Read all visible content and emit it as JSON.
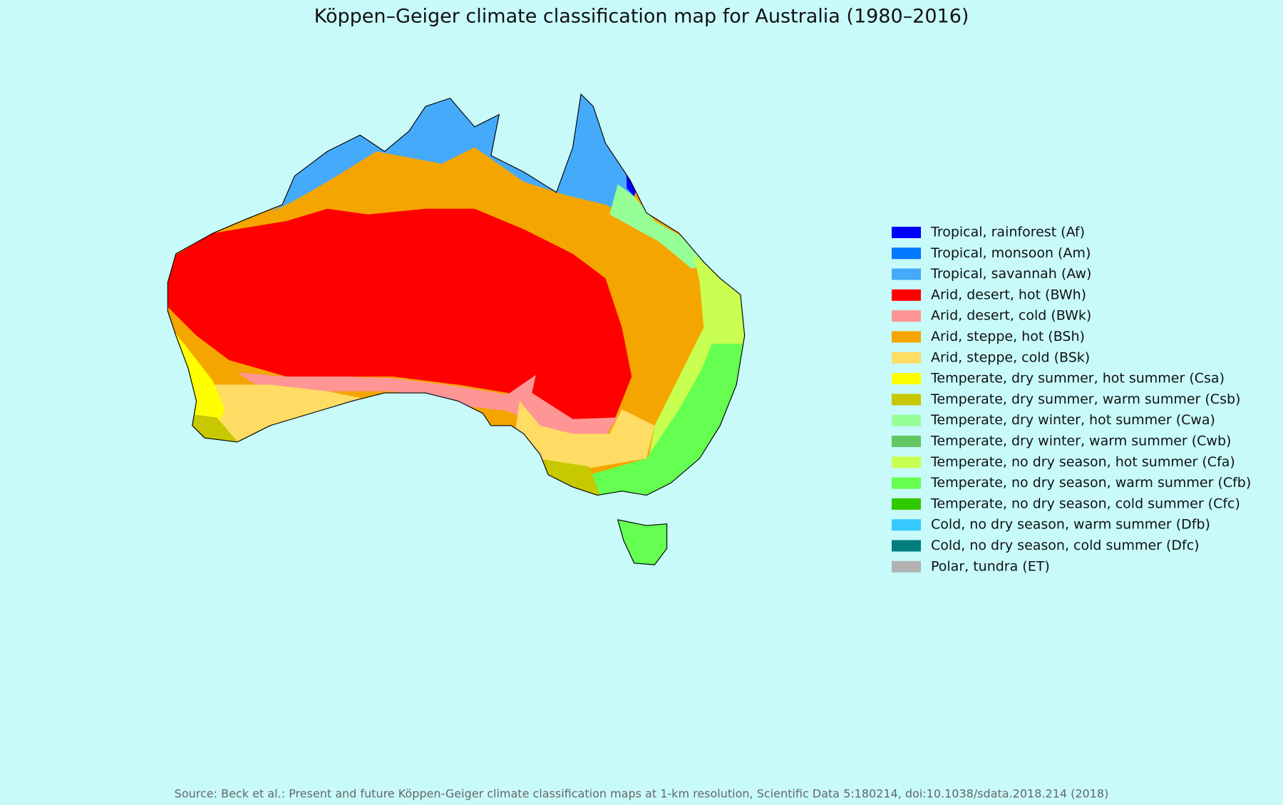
{
  "title": "Köppen–Geiger climate classification map for Australia (1980–2016)",
  "legend": {
    "items": [
      {
        "label": "Tropical, rainforest (Af)",
        "color": "#0000ff"
      },
      {
        "label": "Tropical, monsoon (Am)",
        "color": "#0078ff"
      },
      {
        "label": "Tropical, savannah (Aw)",
        "color": "#46aafa"
      },
      {
        "label": "Arid, desert, hot (BWh)",
        "color": "#ff0000"
      },
      {
        "label": "Arid, desert, cold (BWk)",
        "color": "#ff9696"
      },
      {
        "label": "Arid, steppe, hot (BSh)",
        "color": "#f5a500"
      },
      {
        "label": "Arid, steppe, cold (BSk)",
        "color": "#ffdc64"
      },
      {
        "label": "Temperate, dry summer, hot summer (Csa)",
        "color": "#ffff00"
      },
      {
        "label": "Temperate, dry summer, warm summer (Csb)",
        "color": "#c8c800"
      },
      {
        "label": "Temperate, dry winter, hot summer (Cwa)",
        "color": "#96ff96"
      },
      {
        "label": "Temperate, dry winter, warm summer (Cwb)",
        "color": "#63c764"
      },
      {
        "label": "Temperate, no dry season, hot summer (Cfa)",
        "color": "#c8ff50"
      },
      {
        "label": "Temperate, no dry season, warm summer (Cfb)",
        "color": "#64ff50"
      },
      {
        "label": "Temperate, no dry season, cold summer (Cfc)",
        "color": "#32c800"
      },
      {
        "label": "Cold, no dry season, warm summer (Dfb)",
        "color": "#37c8ff"
      },
      {
        "label": "Cold, no dry season, cold summer (Dfc)",
        "color": "#007d7d"
      },
      {
        "label": "Polar, tundra (ET)",
        "color": "#b2b2b2"
      }
    ]
  },
  "source": "Source: Beck et al.: Present and future Köppen-Geiger climate classification maps at 1-km resolution, Scientific Data 5:180214, doi:10.1038/sdata.2018.214 (2018)"
}
